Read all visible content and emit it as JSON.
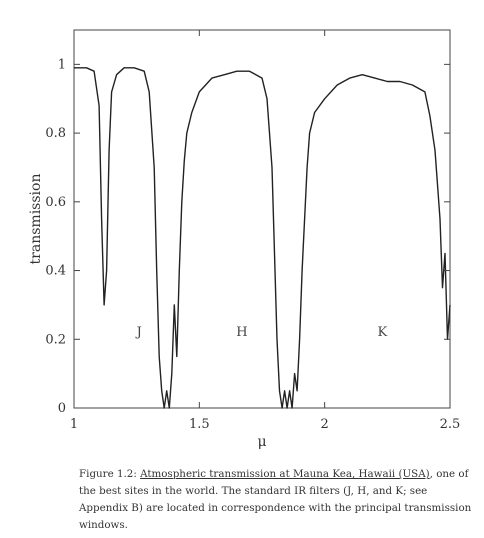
{
  "chart_data": {
    "type": "line",
    "title": "",
    "xlabel": "μ",
    "ylabel": "transmission",
    "xlim": [
      1,
      2.5
    ],
    "ylim": [
      0,
      1.1
    ],
    "x_ticks": [
      1,
      1.5,
      2,
      2.5
    ],
    "x_tick_labels": [
      "1",
      "1.5",
      "2",
      "2.5"
    ],
    "y_ticks": [
      0,
      0.2,
      0.4,
      0.6,
      0.8,
      1
    ],
    "y_tick_labels": [
      "0",
      "0.2",
      "0.4",
      "0.6",
      "0.8",
      "1"
    ],
    "grid": false,
    "band_labels": [
      {
        "text": "J",
        "x": 1.26,
        "y": 0.21
      },
      {
        "text": "H",
        "x": 1.67,
        "y": 0.21
      },
      {
        "text": "K",
        "x": 2.23,
        "y": 0.21
      }
    ],
    "series": [
      {
        "x": [
          1.0,
          1.05,
          1.08,
          1.1,
          1.11,
          1.12,
          1.13,
          1.14,
          1.15,
          1.17,
          1.2,
          1.24,
          1.28,
          1.3,
          1.32,
          1.33,
          1.34,
          1.35,
          1.36,
          1.37,
          1.38,
          1.39,
          1.4,
          1.41,
          1.42,
          1.43,
          1.44,
          1.45,
          1.47,
          1.5,
          1.55,
          1.6,
          1.65,
          1.7,
          1.75,
          1.77,
          1.79,
          1.8,
          1.81,
          1.82,
          1.83,
          1.84,
          1.85,
          1.86,
          1.87,
          1.88,
          1.89,
          1.9,
          1.91,
          1.92,
          1.93,
          1.94,
          1.96,
          2.0,
          2.05,
          2.1,
          2.15,
          2.2,
          2.25,
          2.3,
          2.35,
          2.4,
          2.42,
          2.44,
          2.46,
          2.47,
          2.48,
          2.49,
          2.5
        ],
        "y": [
          0.99,
          0.99,
          0.98,
          0.88,
          0.55,
          0.3,
          0.4,
          0.75,
          0.92,
          0.97,
          0.99,
          0.99,
          0.98,
          0.92,
          0.7,
          0.4,
          0.15,
          0.05,
          0.0,
          0.05,
          0.0,
          0.1,
          0.3,
          0.15,
          0.4,
          0.6,
          0.72,
          0.8,
          0.86,
          0.92,
          0.96,
          0.97,
          0.98,
          0.98,
          0.96,
          0.9,
          0.7,
          0.45,
          0.2,
          0.05,
          0.0,
          0.05,
          0.0,
          0.05,
          0.0,
          0.1,
          0.05,
          0.2,
          0.4,
          0.55,
          0.7,
          0.8,
          0.86,
          0.9,
          0.94,
          0.96,
          0.97,
          0.96,
          0.95,
          0.95,
          0.94,
          0.92,
          0.85,
          0.75,
          0.55,
          0.35,
          0.45,
          0.2,
          0.3
        ]
      }
    ]
  },
  "caption": {
    "prefix": "Figure 1.2: ",
    "underlined": "Atmospheric transmission at Mauna Kea, Hawaii (USA)",
    "rest": ", one of the best sites in the world. The standard IR filters (J, H, and K; see Appendix B) are located in correspondence with the principal transmission windows."
  }
}
